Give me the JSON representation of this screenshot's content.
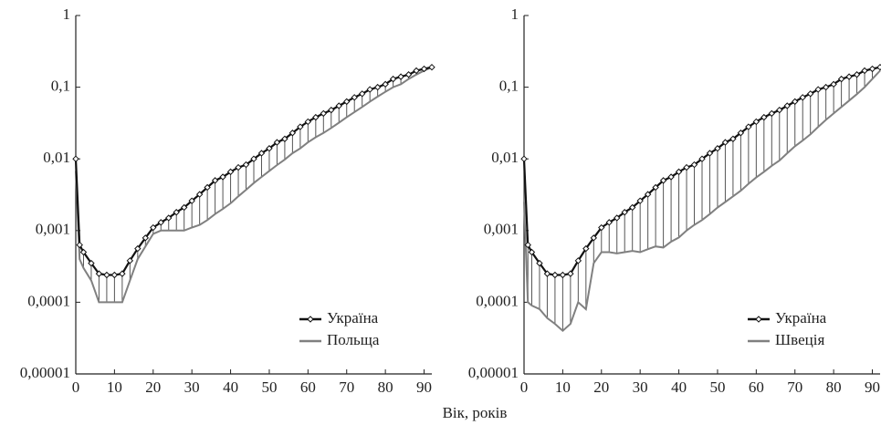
{
  "xlabel": "Вік, років",
  "chart_data": [
    {
      "type": "line",
      "log_y": true,
      "legend": "lower right",
      "x": [
        0,
        1,
        2,
        4,
        6,
        8,
        10,
        12,
        14,
        16,
        18,
        20,
        22,
        24,
        26,
        28,
        30,
        32,
        34,
        36,
        38,
        40,
        42,
        44,
        46,
        48,
        50,
        52,
        54,
        56,
        58,
        60,
        62,
        64,
        66,
        68,
        70,
        72,
        74,
        76,
        78,
        80,
        82,
        84,
        86,
        88,
        90,
        92
      ],
      "series": [
        {
          "name": "Україна",
          "color": "#111111",
          "marker": "diamond",
          "values": [
            0.01,
            0.00063,
            0.0005,
            0.00035,
            0.00025,
            0.00024,
            0.00024,
            0.00025,
            0.00038,
            0.00056,
            0.00079,
            0.0011,
            0.0013,
            0.0015,
            0.0018,
            0.0021,
            0.0026,
            0.0032,
            0.004,
            0.005,
            0.0056,
            0.0066,
            0.0076,
            0.0083,
            0.01,
            0.012,
            0.014,
            0.017,
            0.019,
            0.023,
            0.028,
            0.033,
            0.038,
            0.043,
            0.048,
            0.055,
            0.063,
            0.072,
            0.081,
            0.093,
            0.1,
            0.11,
            0.13,
            0.14,
            0.15,
            0.17,
            0.18,
            0.19
          ]
        },
        {
          "name": "Польща",
          "color": "#808080",
          "values": [
            0.0068,
            0.0004,
            0.0003,
            0.0002,
            0.0001,
            0.0001,
            0.0001,
            0.0001,
            0.0002,
            0.0004,
            0.0006,
            0.0009,
            0.001,
            0.001,
            0.001,
            0.001,
            0.0011,
            0.0012,
            0.0014,
            0.0017,
            0.002,
            0.0024,
            0.003,
            0.0037,
            0.0046,
            0.0056,
            0.0068,
            0.0082,
            0.0098,
            0.012,
            0.014,
            0.017,
            0.02,
            0.023,
            0.027,
            0.032,
            0.038,
            0.045,
            0.053,
            0.063,
            0.074,
            0.086,
            0.1,
            0.11,
            0.13,
            0.15,
            0.17,
            0.19
          ]
        }
      ],
      "xlim": [
        0,
        92
      ],
      "xticks": [
        0,
        10,
        20,
        30,
        40,
        50,
        60,
        70,
        80,
        90
      ],
      "ylim": [
        1e-05,
        1
      ],
      "yticks": [
        {
          "value": 1e-05,
          "label": "0,00001"
        },
        {
          "value": 0.0001,
          "label": "0,0001"
        },
        {
          "value": 0.001,
          "label": "0,001"
        },
        {
          "value": 0.01,
          "label": "0,01"
        },
        {
          "value": 0.1,
          "label": "0,1"
        },
        1
      ]
    },
    {
      "type": "line",
      "log_y": true,
      "legend": "lower right",
      "x": [
        0,
        1,
        2,
        4,
        6,
        8,
        10,
        12,
        14,
        16,
        18,
        20,
        22,
        24,
        26,
        28,
        30,
        32,
        34,
        36,
        38,
        40,
        42,
        44,
        46,
        48,
        50,
        52,
        54,
        56,
        58,
        60,
        62,
        64,
        66,
        68,
        70,
        72,
        74,
        76,
        78,
        80,
        82,
        84,
        86,
        88,
        90,
        92
      ],
      "series": [
        {
          "name": "Україна",
          "color": "#111111",
          "marker": "diamond",
          "values": [
            0.01,
            0.00063,
            0.0005,
            0.00035,
            0.00025,
            0.00024,
            0.00024,
            0.00025,
            0.00038,
            0.00056,
            0.00079,
            0.0011,
            0.0013,
            0.0015,
            0.0018,
            0.0021,
            0.0026,
            0.0032,
            0.004,
            0.005,
            0.0056,
            0.0066,
            0.0076,
            0.0083,
            0.01,
            0.012,
            0.014,
            0.017,
            0.019,
            0.023,
            0.028,
            0.033,
            0.038,
            0.043,
            0.048,
            0.055,
            0.063,
            0.072,
            0.081,
            0.093,
            0.1,
            0.11,
            0.13,
            0.14,
            0.15,
            0.17,
            0.18,
            0.19
          ]
        },
        {
          "name": "Швеція",
          "color": "#808080",
          "values": [
            0.0025,
            0.0001,
            9e-05,
            8e-05,
            6e-05,
            5e-05,
            4e-05,
            5e-05,
            0.0001,
            8e-05,
            0.00035,
            0.0005,
            0.0005,
            0.00048,
            0.0005,
            0.00052,
            0.0005,
            0.00055,
            0.0006,
            0.00058,
            0.0007,
            0.0008,
            0.001,
            0.0012,
            0.0014,
            0.0017,
            0.0021,
            0.0025,
            0.003,
            0.0036,
            0.0045,
            0.0055,
            0.0066,
            0.008,
            0.0095,
            0.012,
            0.015,
            0.018,
            0.022,
            0.028,
            0.035,
            0.043,
            0.053,
            0.065,
            0.08,
            0.1,
            0.13,
            0.17
          ]
        }
      ],
      "xlim": [
        0,
        92
      ],
      "xticks": [
        0,
        10,
        20,
        30,
        40,
        50,
        60,
        70,
        80,
        90
      ],
      "ylim": [
        1e-05,
        1
      ],
      "yticks": [
        {
          "value": 1e-05,
          "label": "0,00001"
        },
        {
          "value": 0.0001,
          "label": "0,0001"
        },
        {
          "value": 0.001,
          "label": "0,001"
        },
        {
          "value": 0.01,
          "label": "0,01"
        },
        {
          "value": 0.1,
          "label": "0,1"
        },
        1
      ]
    }
  ]
}
